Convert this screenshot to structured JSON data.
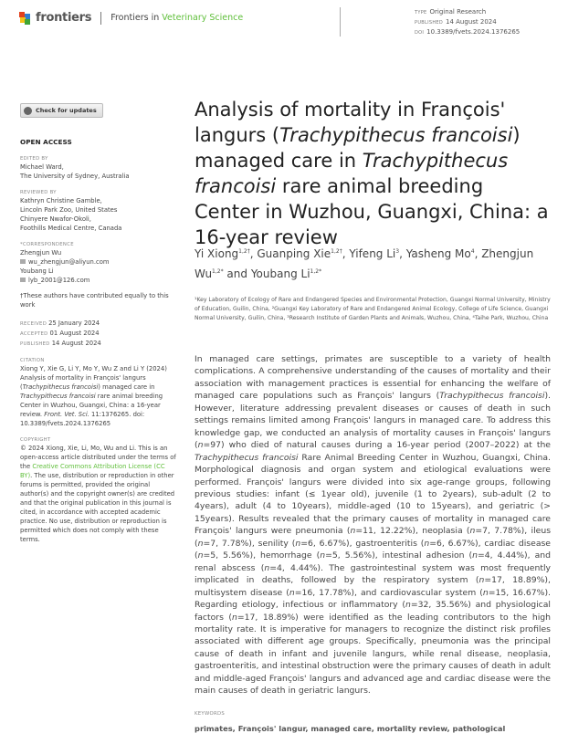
{
  "header": {
    "brand": "frontiers",
    "journal_prefix": "Frontiers in ",
    "journal_name": "Veterinary Science",
    "type_label": "TYPE",
    "type": "Original Research",
    "published_label": "PUBLISHED",
    "published": "14 August 2024",
    "doi_label": "DOI",
    "doi": "10.3389/fvets.2024.1376265",
    "accent": "#5fbf3a"
  },
  "sidebar": {
    "check_updates": "Check for updates",
    "open_access": "OPEN ACCESS",
    "edited_label": "EDITED BY",
    "edited": [
      "Michael Ward,",
      "The University of Sydney, Australia"
    ],
    "reviewed_label": "REVIEWED BY",
    "reviewed": [
      "Kathryn Christine Gamble,",
      "Lincoln Park Zoo, United States",
      "Chinyere Nwafor-Okoli,",
      "Foothills Medical Centre, Canada"
    ],
    "corr_label": "*CORRESPONDENCE",
    "corr": [
      {
        "name": "Zhengjun Wu",
        "email": "wu_zhengjun@aliyun.com"
      },
      {
        "name": "Youbang Li",
        "email": "lyb_2001@126.com"
      }
    ],
    "equal_note": "†These authors have contributed equally to this work",
    "received_label": "RECEIVED",
    "received": "25 January 2024",
    "accepted_label": "ACCEPTED",
    "accepted": "01 August 2024",
    "published_label": "PUBLISHED",
    "published": "14 August 2024",
    "citation_label": "CITATION",
    "citation": [
      {
        "t": "Xiong Y, Xie G, Li Y, Mo Y, Wu Z and Li Y (2024) Analysis of mortality in François' langurs ("
      },
      {
        "t": "Trachypithecus francoisi",
        "i": true
      },
      {
        "t": ") managed care in "
      },
      {
        "t": "Trachypithecus francoisi",
        "i": true
      },
      {
        "t": " rare animal breeding Center in Wuzhou, Guangxi, China: a 16-year review. "
      },
      {
        "t": "Front. Vet. Sci.",
        "i": true
      },
      {
        "t": " 11:1376265. doi: 10.3389/fvets.2024.1376265"
      }
    ],
    "copyright_label": "COPYRIGHT",
    "copyright_pre": "© 2024 Xiong, Xie, Li, Mo, Wu and Li. This is an open-access article distributed under the terms of the ",
    "copyright_link": "Creative Commons Attribution License (CC BY)",
    "copyright_post": ". The use, distribution or reproduction in other forums is permitted, provided the original author(s) and the copyright owner(s) are credited and that the original publication in this journal is cited, in accordance with accepted academic practice. No use, distribution or reproduction is permitted which does not comply with these terms."
  },
  "title": [
    {
      "t": "Analysis of mortality in François' langurs ("
    },
    {
      "t": "Trachypithecus francoisi",
      "i": true
    },
    {
      "t": ") managed care in "
    },
    {
      "t": "Trachypithecus francoisi",
      "i": true
    },
    {
      "t": " rare animal breeding Center in Wuzhou, Guangxi, China: a 16-year review"
    }
  ],
  "authors": [
    {
      "name": "Yi Xiong",
      "sup": "1,2†",
      "sep": ", "
    },
    {
      "name": "Guanping Xie",
      "sup": "1,2†",
      "sep": ", "
    },
    {
      "name": "Yifeng Li",
      "sup": "3",
      "sep": ", "
    },
    {
      "name": "Yasheng Mo",
      "sup": "4",
      "sep": ", "
    },
    {
      "name": "Zhengjun Wu",
      "sup": "1,2*",
      "sep": " and "
    },
    {
      "name": "Youbang Li",
      "sup": "1,2*",
      "sep": ""
    }
  ],
  "affiliations": "¹Key Laboratory of Ecology of Rare and Endangered Species and Environmental Protection, Guangxi Normal University, Ministry of Education, Guilin, China, ²Guangxi Key Laboratory of Rare and Endangered Animal Ecology, College of Life Science, Guangxi Normal University, Guilin, China, ³Research Institute of Garden Plants and Animals, Wuzhou, China, ⁴Taihe Park, Wuzhou, China",
  "abstract": [
    {
      "t": "In managed care settings, primates are susceptible to a variety of health complications. A comprehensive understanding of the causes of mortality and their association with management practices is essential for enhancing the welfare of managed care populations such as François' langurs ("
    },
    {
      "t": "Trachypithecus francoisi",
      "i": true
    },
    {
      "t": "). However, literature addressing prevalent diseases or causes of death in such settings remains limited among François' langurs in managed care. To address this knowledge gap, we conducted an analysis of mortality causes in François' langurs ("
    },
    {
      "t": "n",
      "i": true
    },
    {
      "t": "=97) who died of natural causes during a 16-year period (2007–2022) at the "
    },
    {
      "t": "Trachypithecus francoisi",
      "i": true
    },
    {
      "t": " Rare Animal Breeding Center in Wuzhou, Guangxi, China. Morphological diagnosis and organ system and etiological evaluations were performed. François' langurs were divided into six age-range groups, following previous studies: infant (≤ 1year old), juvenile (1 to 2years), sub-adult (2 to 4years), adult (4 to 10years), middle-aged (10 to 15years), and geriatric (> 15years). Results revealed that the primary causes of mortality in managed care François' langurs were pneumonia ("
    },
    {
      "t": "n",
      "i": true
    },
    {
      "t": "=11, 12.22%), neoplasia ("
    },
    {
      "t": "n",
      "i": true
    },
    {
      "t": "=7, 7.78%), ileus ("
    },
    {
      "t": "n",
      "i": true
    },
    {
      "t": "=7, 7.78%), senility ("
    },
    {
      "t": "n",
      "i": true
    },
    {
      "t": "=6, 6.67%), gastroenteritis ("
    },
    {
      "t": "n",
      "i": true
    },
    {
      "t": "=6, 6.67%), cardiac disease ("
    },
    {
      "t": "n",
      "i": true
    },
    {
      "t": "=5, 5.56%), hemorrhage ("
    },
    {
      "t": "n",
      "i": true
    },
    {
      "t": "=5, 5.56%), intestinal adhesion ("
    },
    {
      "t": "n",
      "i": true
    },
    {
      "t": "=4, 4.44%), and renal abscess ("
    },
    {
      "t": "n",
      "i": true
    },
    {
      "t": "=4, 4.44%). The gastrointestinal system was most frequently implicated in deaths, followed by the respiratory system ("
    },
    {
      "t": "n",
      "i": true
    },
    {
      "t": "=17, 18.89%), multisystem disease ("
    },
    {
      "t": "n",
      "i": true
    },
    {
      "t": "=16, 17.78%), and cardiovascular system ("
    },
    {
      "t": "n",
      "i": true
    },
    {
      "t": "=15, 16.67%). Regarding etiology, infectious or inflammatory ("
    },
    {
      "t": "n",
      "i": true
    },
    {
      "t": "=32, 35.56%) and physiological factors ("
    },
    {
      "t": "n",
      "i": true
    },
    {
      "t": "=17, 18.89%) were identified as the leading contributors to the high mortality rate. It is imperative for managers to recognize the distinct risk profiles associated with different age groups. Specifically, pneumonia was the principal cause of death in infant and juvenile langurs, while renal disease, neoplasia, gastroenteritis, and intestinal obstruction were the primary causes of death in adult and middle-aged François' langurs and advanced age and cardiac disease were the main causes of death in geriatric langurs."
    }
  ],
  "keywords_label": "KEYWORDS",
  "keywords": "primates, François' langur, managed care, mortality review, pathological"
}
